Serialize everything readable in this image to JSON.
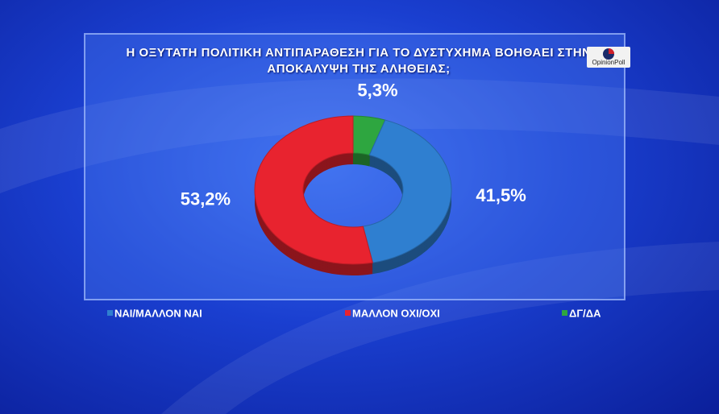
{
  "chart_data": {
    "type": "donut",
    "title": "Η ΟΞΥΤΑΤΗ ΠΟΛΙΤΙΚΗ ΑΝΤΙΠΑΡΑΘΕΣΗ ΓΙΑ ΤΟ ΔΥΣΤΥΧΗΜΑ ΒΟΗΘΑΕΙ ΣΤΗΝ ΑΠΟΚΑΛΥΨΗ ΤΗΣ ΑΛΗΘΕΙΑΣ;",
    "categories": [
      "ΝΑΙ/ΜΑΛΛΟΝ ΝΑΙ",
      "ΜΑΛΛΟΝ ΟΧΙ/ΟΧΙ",
      "ΔΓ/ΔΑ"
    ],
    "values": [
      41.5,
      53.2,
      5.3
    ],
    "value_labels": [
      "41,5%",
      "53,2%",
      "5,3%"
    ],
    "colors": [
      "#2f7fd0",
      "#e8232f",
      "#2ea640"
    ]
  },
  "logo": "OpinionPoll"
}
